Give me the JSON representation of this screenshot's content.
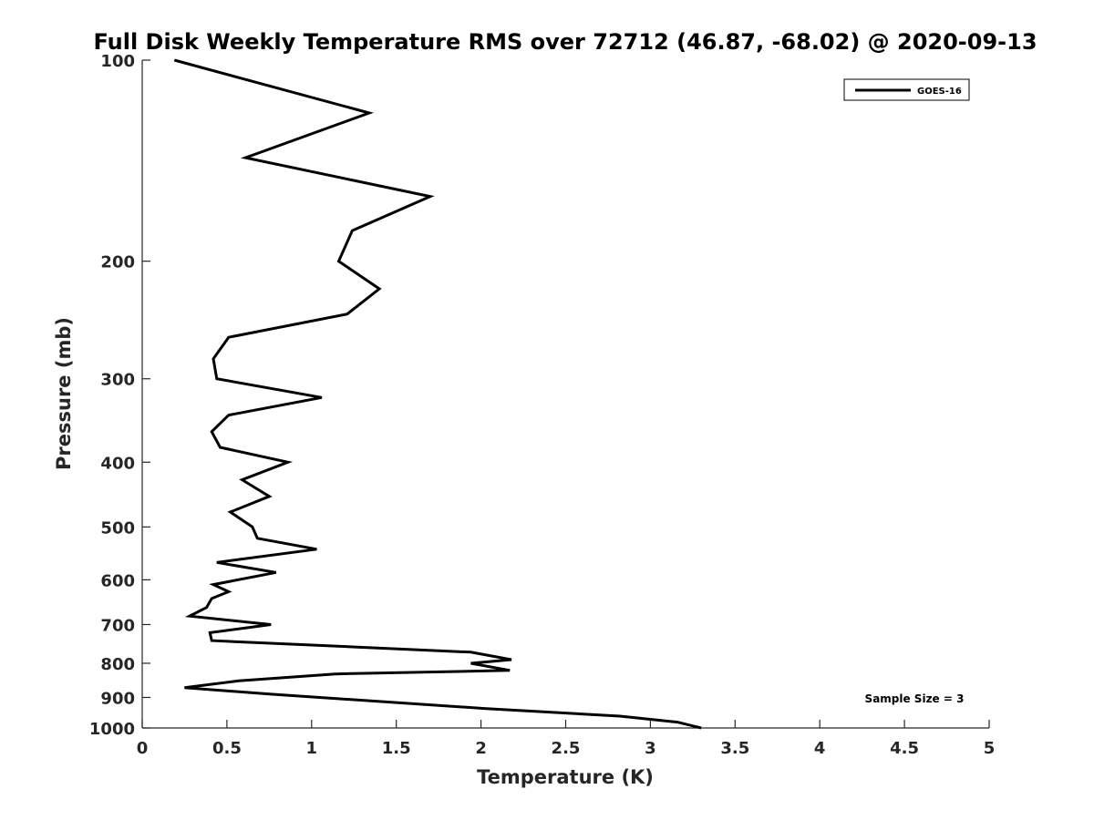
{
  "chart_data": {
    "type": "line",
    "title": "Full Disk Weekly Temperature RMS over 72712 (46.87, -68.02) @ 2020-09-13",
    "xlabel": "Temperature (K)",
    "ylabel": "Pressure (mb)",
    "xlim": [
      0,
      5
    ],
    "ylim": [
      100,
      1000
    ],
    "y_scale": "log",
    "y_reversed": true,
    "grid": false,
    "legend_placement": "top-right",
    "x_ticks": [
      "0",
      "0.5",
      "1",
      "1.5",
      "2",
      "2.5",
      "3",
      "3.5",
      "4",
      "4.5",
      "5"
    ],
    "y_ticks": [
      "100",
      "200",
      "300",
      "400",
      "500",
      "600",
      "700",
      "800",
      "900",
      "1000"
    ],
    "annotation": "Sample Size = 3",
    "series": [
      {
        "name": "GOES-16",
        "color": "#000000",
        "points": [
          [
            0.19,
            100
          ],
          [
            1.34,
            120
          ],
          [
            0.61,
            140
          ],
          [
            1.7,
            160
          ],
          [
            1.24,
            180
          ],
          [
            1.16,
            200
          ],
          [
            1.4,
            220
          ],
          [
            1.21,
            240
          ],
          [
            0.51,
            260
          ],
          [
            0.42,
            280
          ],
          [
            0.44,
            300
          ],
          [
            1.06,
            320
          ],
          [
            0.51,
            340
          ],
          [
            0.41,
            360
          ],
          [
            0.46,
            380
          ],
          [
            0.86,
            400
          ],
          [
            0.59,
            425
          ],
          [
            0.75,
            450
          ],
          [
            0.52,
            475
          ],
          [
            0.65,
            500
          ],
          [
            0.68,
            520
          ],
          [
            1.03,
            540
          ],
          [
            0.44,
            565
          ],
          [
            0.79,
            585
          ],
          [
            0.42,
            610
          ],
          [
            0.51,
            625
          ],
          [
            0.41,
            640
          ],
          [
            0.38,
            660
          ],
          [
            0.28,
            680
          ],
          [
            0.76,
            700
          ],
          [
            0.4,
            720
          ],
          [
            0.41,
            740
          ],
          [
            1.94,
            770
          ],
          [
            2.18,
            790
          ],
          [
            1.94,
            800
          ],
          [
            2.17,
            820
          ],
          [
            1.14,
            830
          ],
          [
            0.57,
            850
          ],
          [
            0.25,
            870
          ],
          [
            0.76,
            890
          ],
          [
            2.02,
            935
          ],
          [
            2.82,
            960
          ],
          [
            3.16,
            980
          ],
          [
            3.3,
            1000
          ]
        ]
      }
    ]
  }
}
